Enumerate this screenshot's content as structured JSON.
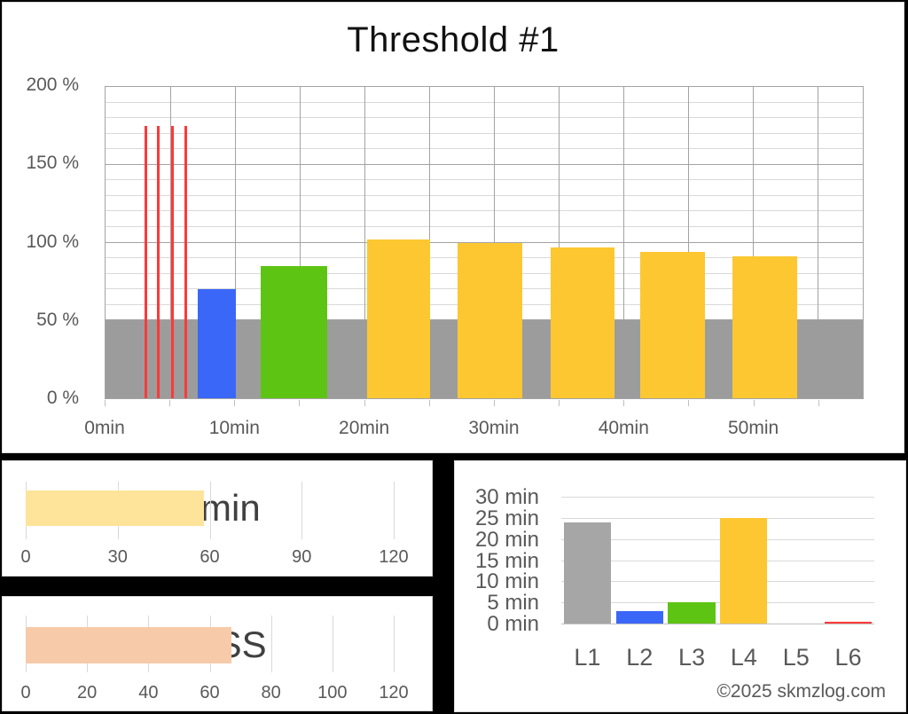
{
  "header": {
    "title": "Threshold #1"
  },
  "footer": {
    "copyright": "©2025 skmzlog.com"
  },
  "colors": {
    "page_bg": "#000000",
    "panel_bg": "#ffffff",
    "panel_border": "#d9d9d9",
    "title_text": "#111111",
    "axis_text": "#595959",
    "value_text": "#404040",
    "grid_minor": "#d9d9d9",
    "grid_major": "#a3a3a3",
    "tick_mark": "#bfbfbf",
    "band_gray": "#9c9c9c",
    "bar_gray": "#a6a6a6",
    "bar_blue": "#3a67f8",
    "bar_green": "#5ec414",
    "bar_yellow": "#fdc732",
    "bar_red": "#fb3a3a",
    "bar_light_yellow": "#fde49a",
    "bar_salmon": "#f7caa9"
  },
  "chart_data": [
    {
      "id": "threshold-interval-profile",
      "type": "bar",
      "title": "Threshold #1",
      "xlabel": "",
      "ylabel": "",
      "x_unit": "min",
      "y_unit": "%",
      "xlim": [
        0,
        58.5
      ],
      "ylim": [
        0,
        200
      ],
      "y_major_ticks": [
        200,
        150,
        100,
        50,
        0
      ],
      "y_tick_labels": [
        "200 %",
        "150 %",
        "100 %",
        "50 %",
        "0 %"
      ],
      "y_minor_step": 10,
      "x_grid_step": 5,
      "x_ticks": [
        0,
        10,
        20,
        30,
        40,
        50
      ],
      "x_tick_labels": [
        "0min",
        "10min",
        "20min",
        "30min",
        "40min",
        "50min"
      ],
      "grid": true,
      "background_band": {
        "start": 0,
        "end": 58.5,
        "from": 0,
        "to": 50,
        "color": "band_gray"
      },
      "segments": [
        {
          "start": 3.0,
          "end": 3.2,
          "intensity_pct": 175,
          "color": "bar_red"
        },
        {
          "start": 4.0,
          "end": 4.2,
          "intensity_pct": 175,
          "color": "bar_red"
        },
        {
          "start": 5.1,
          "end": 5.3,
          "intensity_pct": 175,
          "color": "bar_red"
        },
        {
          "start": 6.1,
          "end": 6.3,
          "intensity_pct": 175,
          "color": "bar_red"
        },
        {
          "start": 7.1,
          "end": 10.1,
          "intensity_pct": 70,
          "color": "bar_blue"
        },
        {
          "start": 12.0,
          "end": 17.1,
          "intensity_pct": 85,
          "color": "bar_green"
        },
        {
          "start": 20.2,
          "end": 25.1,
          "intensity_pct": 102,
          "color": "bar_yellow"
        },
        {
          "start": 27.2,
          "end": 32.2,
          "intensity_pct": 100,
          "color": "bar_yellow"
        },
        {
          "start": 34.4,
          "end": 39.3,
          "intensity_pct": 97,
          "color": "bar_yellow"
        },
        {
          "start": 41.3,
          "end": 46.3,
          "intensity_pct": 94,
          "color": "bar_yellow"
        },
        {
          "start": 48.4,
          "end": 53.4,
          "intensity_pct": 91,
          "color": "bar_yellow"
        }
      ]
    },
    {
      "id": "duration-gauge",
      "type": "bar",
      "orientation": "horizontal",
      "value": 58,
      "value_label": "58min",
      "xlim": [
        0,
        120
      ],
      "ticks": [
        0,
        30,
        60,
        90,
        120
      ],
      "bar_color": "bar_light_yellow"
    },
    {
      "id": "tss-gauge",
      "type": "bar",
      "orientation": "horizontal",
      "value": 67,
      "value_label": "67TSS",
      "xlim": [
        0,
        120
      ],
      "ticks": [
        0,
        20,
        40,
        60,
        80,
        100,
        120
      ],
      "bar_color": "bar_salmon"
    },
    {
      "id": "time-in-zones",
      "type": "bar",
      "categories": [
        "L1",
        "L2",
        "L3",
        "L4",
        "L5",
        "L6"
      ],
      "values": [
        24,
        3,
        5,
        25,
        0,
        0.5
      ],
      "bar_colors": [
        "bar_gray",
        "bar_blue",
        "bar_green",
        "bar_yellow",
        "bar_gray",
        "bar_red"
      ],
      "ylim": [
        0,
        30
      ],
      "y_ticks": [
        30,
        25,
        20,
        15,
        10,
        5,
        0
      ],
      "y_tick_labels": [
        "30 min",
        "25 min",
        "20 min",
        "15 min",
        "10 min",
        "5 min",
        "0 min"
      ],
      "grid": true,
      "annotation": "©2025 skmzlog.com"
    }
  ]
}
